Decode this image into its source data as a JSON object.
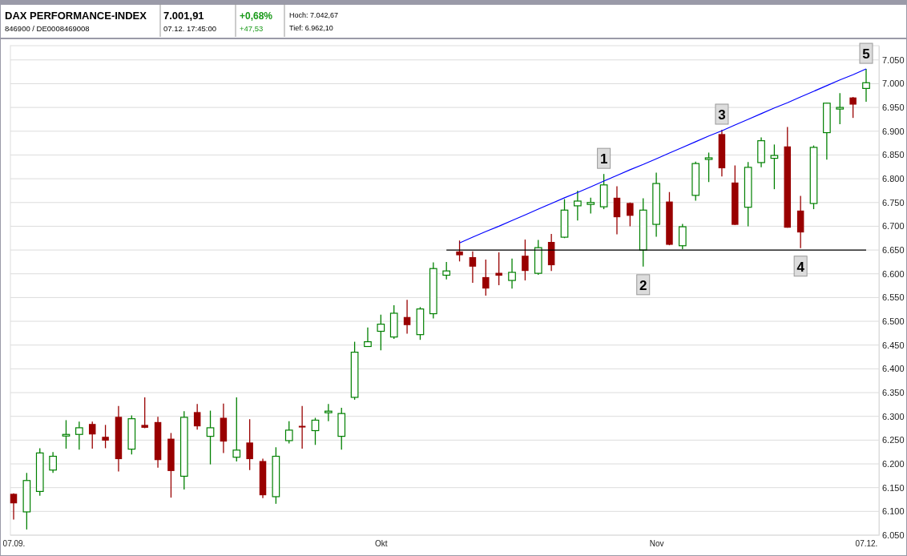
{
  "chart_data": {
    "type": "candlestick",
    "title": "DAX PERFORMANCE-INDEX",
    "subtitle": "846900 / DE0008469008",
    "annotations": [
      "7.001,91",
      "07.12. 17:45:00",
      "+0,68%",
      "+47,53",
      "Hoch: 7.042,67",
      "Tief: 6.962,10",
      "1",
      "2",
      "3",
      "4",
      "5"
    ],
    "categories": [
      "07.09.",
      null,
      null,
      null,
      null,
      null,
      null,
      null,
      null,
      null,
      null,
      null,
      null,
      null,
      null,
      null,
      null,
      null,
      null,
      null,
      null,
      null,
      null,
      null,
      null,
      null,
      null,
      null,
      "Okt",
      null,
      null,
      null,
      null,
      null,
      null,
      null,
      null,
      null,
      null,
      null,
      null,
      null,
      null,
      null,
      null,
      null,
      null,
      null,
      null,
      "Nov",
      null,
      null,
      null,
      null,
      null,
      null,
      null,
      null,
      null,
      null,
      null,
      null,
      null,
      null,
      null,
      "07.12."
    ],
    "ohlc": [
      [
        6137,
        6138,
        6083,
        6117
      ],
      [
        6099,
        6181,
        6062,
        6165
      ],
      [
        6142,
        6233,
        6133,
        6223
      ],
      [
        6187,
        6225,
        6181,
        6216
      ],
      [
        6260,
        6292,
        6232,
        6262
      ],
      [
        6262,
        6289,
        6230,
        6276
      ],
      [
        6284,
        6289,
        6232,
        6262
      ],
      [
        6257,
        6282,
        6233,
        6249
      ],
      [
        6299,
        6322,
        6184,
        6210
      ],
      [
        6231,
        6302,
        6220,
        6295
      ],
      [
        6282,
        6340,
        6275,
        6276
      ],
      [
        6288,
        6299,
        6192,
        6208
      ],
      [
        6253,
        6265,
        6129,
        6185
      ],
      [
        6174,
        6311,
        6146,
        6298
      ],
      [
        6309,
        6326,
        6272,
        6279
      ],
      [
        6258,
        6312,
        6199,
        6276
      ],
      [
        6297,
        6327,
        6223,
        6247
      ],
      [
        6214,
        6340,
        6205,
        6229
      ],
      [
        6245,
        6294,
        6187,
        6210
      ],
      [
        6206,
        6211,
        6128,
        6134
      ],
      [
        6131,
        6235,
        6116,
        6216
      ],
      [
        6249,
        6290,
        6243,
        6271
      ],
      [
        6280,
        6322,
        6232,
        6277
      ],
      [
        6270,
        6297,
        6240,
        6292
      ],
      [
        6309,
        6326,
        6290,
        6311
      ],
      [
        6258,
        6318,
        6230,
        6306
      ],
      [
        6340,
        6457,
        6335,
        6435
      ],
      [
        6447,
        6487,
        6446,
        6457
      ],
      [
        6479,
        6514,
        6439,
        6494
      ],
      [
        6467,
        6534,
        6463,
        6517
      ],
      [
        6509,
        6545,
        6474,
        6492
      ],
      [
        6472,
        6530,
        6461,
        6526
      ],
      [
        6516,
        6624,
        6506,
        6611
      ],
      [
        6597,
        6625,
        6588,
        6606
      ],
      [
        6647,
        6670,
        6626,
        6639
      ],
      [
        6635,
        6647,
        6581,
        6615
      ],
      [
        6593,
        6630,
        6554,
        6569
      ],
      [
        6602,
        6645,
        6576,
        6596
      ],
      [
        6586,
        6632,
        6569,
        6603
      ],
      [
        6638,
        6672,
        6586,
        6606
      ],
      [
        6601,
        6671,
        6598,
        6655
      ],
      [
        6667,
        6684,
        6606,
        6618
      ],
      [
        6677,
        6757,
        6675,
        6734
      ],
      [
        6743,
        6775,
        6712,
        6753
      ],
      [
        6746,
        6760,
        6727,
        6750
      ],
      [
        6741,
        6810,
        6736,
        6787
      ],
      [
        6760,
        6784,
        6683,
        6719
      ],
      [
        6749,
        6750,
        6700,
        6722
      ],
      [
        6650,
        6759,
        6615,
        6734
      ],
      [
        6704,
        6813,
        6678,
        6790
      ],
      [
        6752,
        6772,
        6660,
        6661
      ],
      [
        6659,
        6705,
        6652,
        6699
      ],
      [
        6765,
        6836,
        6754,
        6832
      ],
      [
        6841,
        6855,
        6793,
        6844
      ],
      [
        6894,
        6903,
        6805,
        6822
      ],
      [
        6792,
        6828,
        6703,
        6703
      ],
      [
        6740,
        6835,
        6700,
        6824
      ],
      [
        6834,
        6887,
        6824,
        6880
      ],
      [
        6843,
        6872,
        6778,
        6849
      ],
      [
        6868,
        6909,
        6697,
        6697
      ],
      [
        6733,
        6764,
        6654,
        6687
      ],
      [
        6748,
        6870,
        6736,
        6866
      ],
      [
        6897,
        6960,
        6840,
        6959
      ],
      [
        6948,
        6980,
        6915,
        6950
      ],
      [
        6971,
        6972,
        6928,
        6956
      ],
      [
        6990,
        7031,
        6962,
        7002
      ]
    ],
    "colors": [
      "#990000",
      "#008000",
      "#008000",
      "#008000",
      "#008000",
      "#008000",
      "#990000",
      "#990000",
      "#990000",
      "#008000",
      "#990000",
      "#990000",
      "#990000",
      "#008000",
      "#990000",
      "#008000",
      "#990000",
      "#008000",
      "#990000",
      "#990000",
      "#008000",
      "#008000",
      "#990000",
      "#008000",
      "#008000",
      "#008000",
      "#008000",
      "#008000",
      "#008000",
      "#008000",
      "#990000",
      "#008000",
      "#008000",
      "#008000",
      "#990000",
      "#990000",
      "#990000",
      "#990000",
      "#008000",
      "#990000",
      "#008000",
      "#990000",
      "#008000",
      "#008000",
      "#008000",
      "#008000",
      "#990000",
      "#990000",
      "#008000",
      "#008000",
      "#990000",
      "#008000",
      "#008000",
      "#008000",
      "#990000",
      "#990000",
      "#008000",
      "#008000",
      "#008000",
      "#990000",
      "#990000",
      "#008000",
      "#008000",
      "#008000",
      "#990000",
      "#008000"
    ],
    "series": [
      {
        "type": "line",
        "color": "#0000ff",
        "values": [
          null,
          null,
          null,
          null,
          null,
          null,
          null,
          null,
          null,
          null,
          null,
          null,
          null,
          null,
          null,
          null,
          null,
          null,
          null,
          null,
          null,
          null,
          null,
          null,
          null,
          null,
          null,
          null,
          null,
          null,
          null,
          null,
          null,
          null,
          6665,
          6677,
          6689,
          6700,
          6712,
          6724,
          6736,
          6748,
          6760,
          6771,
          6783,
          6795,
          6807,
          6819,
          6830,
          6842,
          6854,
          6866,
          6878,
          6890,
          6901,
          6913,
          6925,
          6937,
          6949,
          6960,
          6972,
          6984,
          6996,
          7008,
          7019,
          7031
        ]
      },
      {
        "type": "line",
        "color": "#000000",
        "values": [
          null,
          null,
          null,
          null,
          null,
          null,
          null,
          null,
          null,
          null,
          null,
          null,
          null,
          null,
          null,
          null,
          null,
          null,
          null,
          null,
          null,
          null,
          null,
          null,
          null,
          null,
          null,
          null,
          null,
          null,
          null,
          null,
          null,
          6650,
          6650,
          6650,
          6650,
          6650,
          6650,
          6650,
          6650,
          6650,
          6650,
          6650,
          6650,
          6650,
          6650,
          6650,
          6650,
          6650,
          6650,
          6650,
          6650,
          6650,
          6650,
          6650,
          6650,
          6650,
          6650,
          6650,
          6650,
          6650,
          6650,
          6650,
          6650,
          6650
        ]
      }
    ],
    "ylim": [
      6050,
      7080
    ],
    "yticks": [
      {
        "value": 6050,
        "label": "6.050"
      },
      {
        "value": 6100,
        "label": "6.100"
      },
      {
        "value": 6150,
        "label": "6.150"
      },
      {
        "value": 6200,
        "label": "6.200"
      },
      {
        "value": 6250,
        "label": "6.250"
      },
      {
        "value": 6300,
        "label": "6.300"
      },
      {
        "value": 6350,
        "label": "6.350"
      },
      {
        "value": 6400,
        "label": "6.400"
      },
      {
        "value": 6450,
        "label": "6.450"
      },
      {
        "value": 6500,
        "label": "6.500"
      },
      {
        "value": 6550,
        "label": "6.550"
      },
      {
        "value": 6600,
        "label": "6.600"
      },
      {
        "value": 6650,
        "label": "6.650"
      },
      {
        "value": 6700,
        "label": "6.700"
      },
      {
        "value": 6750,
        "label": "6.750"
      },
      {
        "value": 6800,
        "label": "6.800"
      },
      {
        "value": 6850,
        "label": "6.850"
      },
      {
        "value": 6900,
        "label": "6.900"
      },
      {
        "value": 6950,
        "label": "6.950"
      },
      {
        "value": 7000,
        "label": "7.000"
      },
      {
        "value": 7050,
        "label": "7.050"
      }
    ],
    "grid": "y"
  }
}
